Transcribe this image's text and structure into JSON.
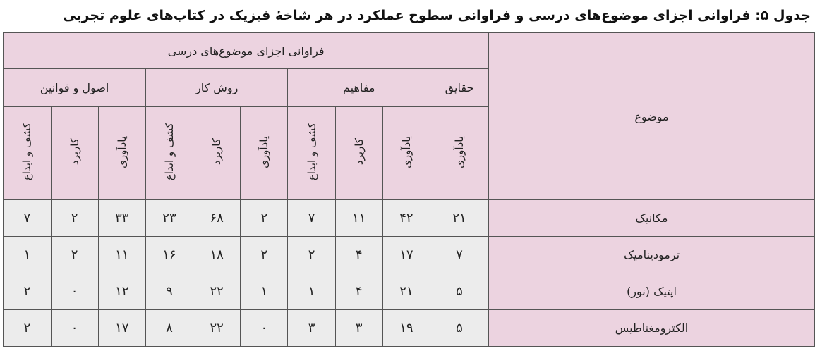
{
  "title": "جدول ۵: فراوانی اجزای موضوع‌های درسی و فراوانی سطوح عملکرد در هر شاخهٔ فیزیک در کتاب‌های علوم تجربی",
  "table": {
    "topic_header": "موضوع",
    "header": "فراوانی اجزای موضوع‌های درسی",
    "groups": [
      "حقایق",
      "مفاهیم",
      "روش کار",
      "اصول و قوانین"
    ],
    "subheaders": [
      "یادآوری",
      "یادآوری",
      "کاربرد",
      "کشف و ابداع",
      "یادآوری",
      "کاربرد",
      "کشف و ابداع",
      "یادآوری",
      "کاربرد",
      "کشف و ابداع"
    ],
    "rows": [
      {
        "topic": "مکانیک",
        "values": [
          "۲۱",
          "۴۲",
          "۱۱",
          "۷",
          "۲",
          "۶۸",
          "۲۳",
          "۳۳",
          "۲",
          "۷"
        ]
      },
      {
        "topic": "ترمودینامیک",
        "values": [
          "۷",
          "۱۷",
          "۴",
          "۲",
          "۲",
          "۱۸",
          "۱۶",
          "۱۱",
          "۲",
          "۱"
        ]
      },
      {
        "topic": "اپتیک (نور)",
        "values": [
          "۵",
          "۲۱",
          "۴",
          "۱",
          "۱",
          "۲۲",
          "۹",
          "۱۲",
          "۰",
          "۲"
        ]
      },
      {
        "topic": "الکترومغناطیس",
        "values": [
          "۵",
          "۱۹",
          "۳",
          "۳",
          "۰",
          "۲۲",
          "۸",
          "۱۷",
          "۰",
          "۲"
        ]
      }
    ]
  }
}
